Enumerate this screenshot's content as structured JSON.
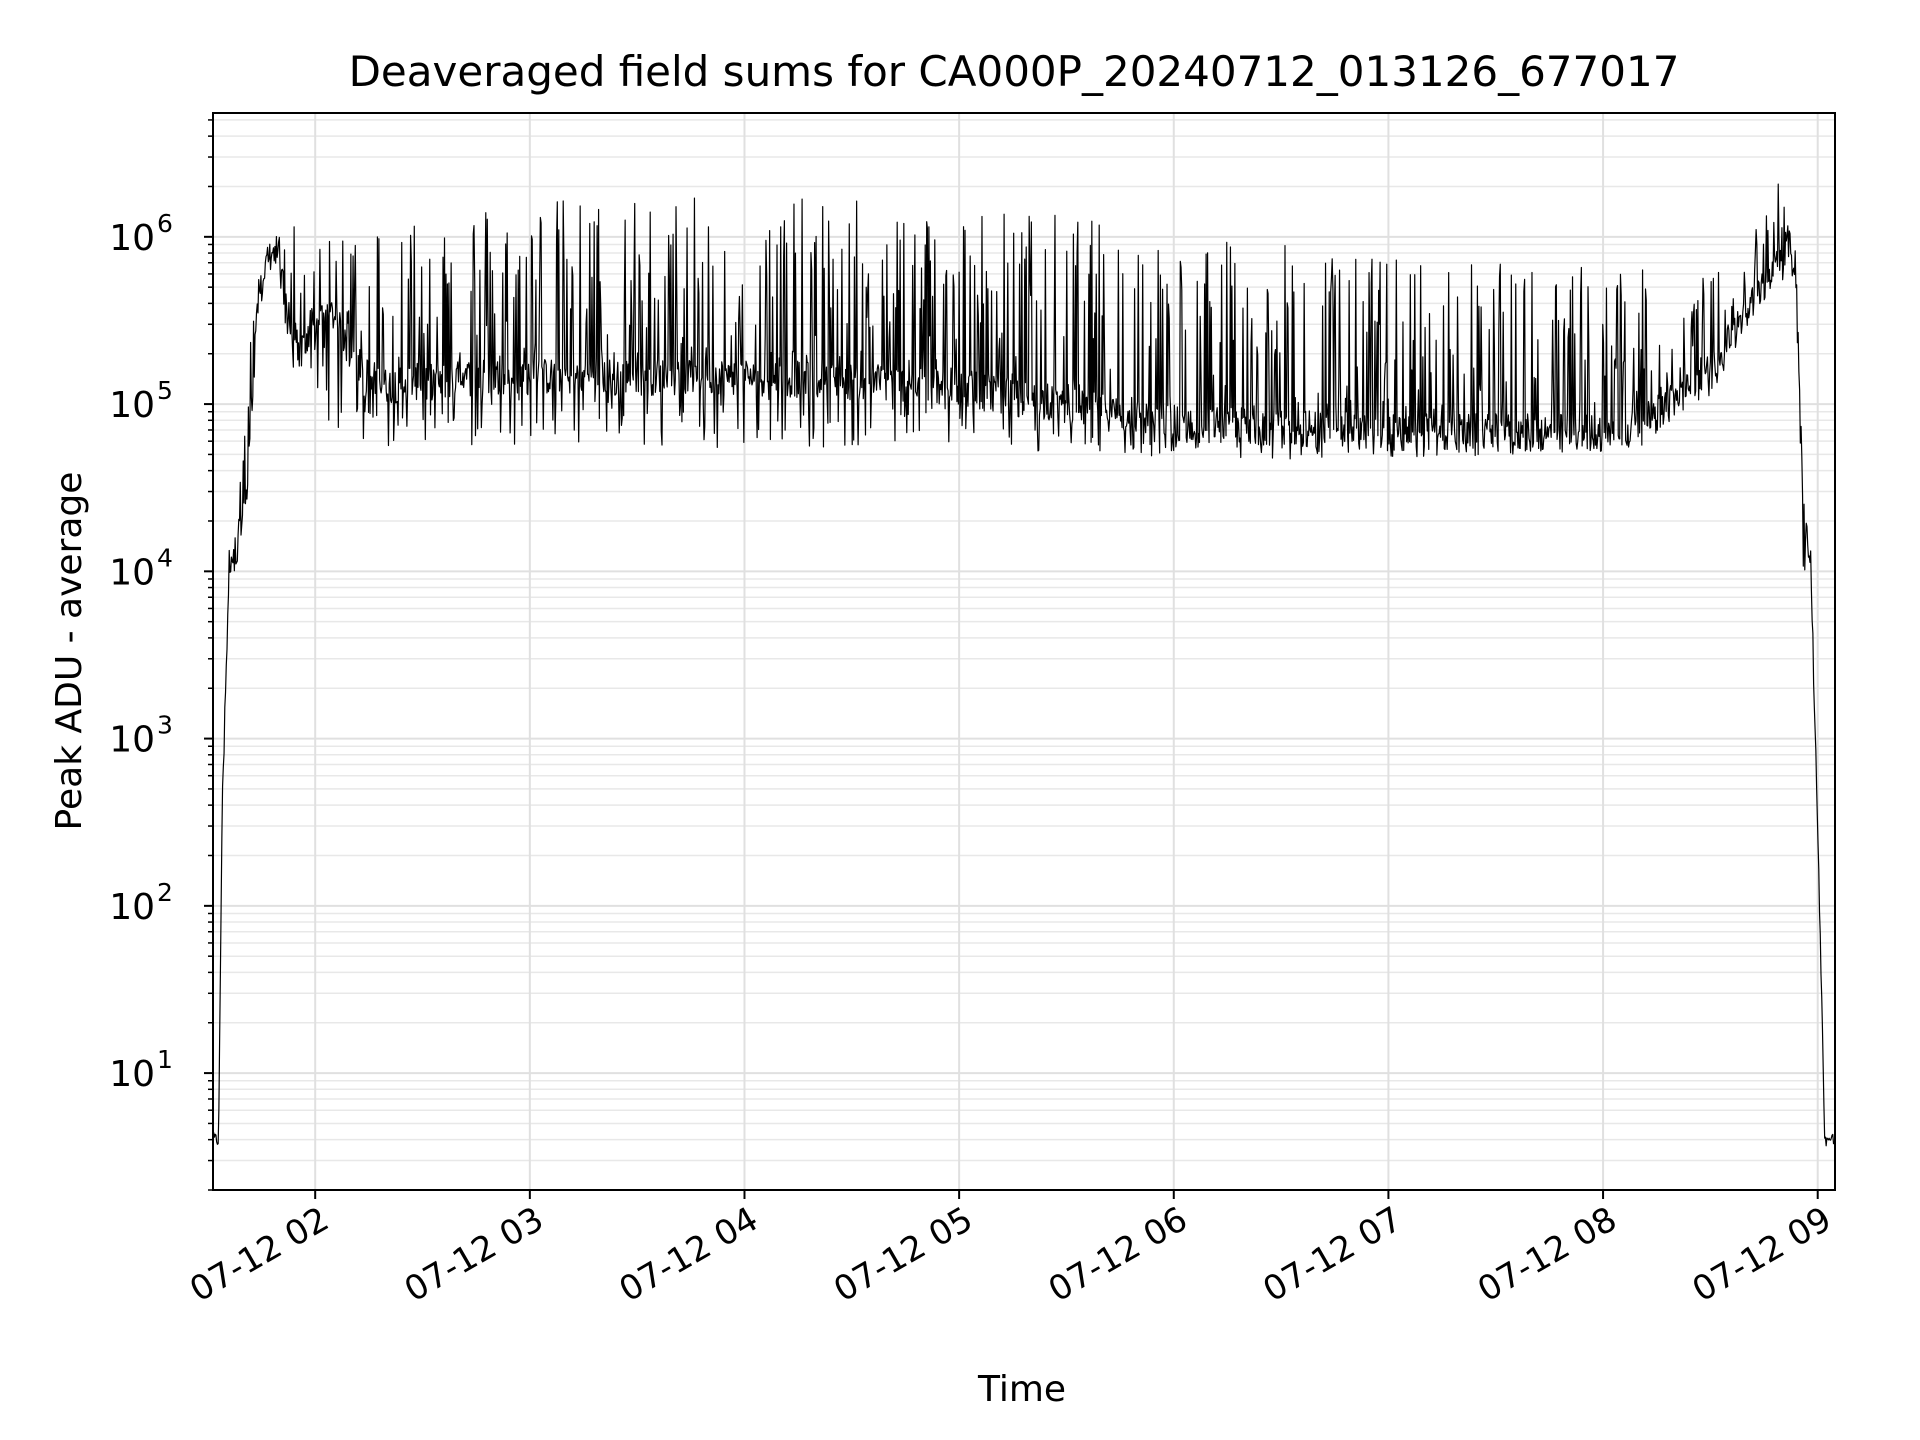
{
  "chart_data": {
    "type": "line",
    "title": "Deaveraged field sums for CA000P_20240712_013126_677017",
    "xlabel": "Time",
    "ylabel": "Peak ADU - average",
    "yscale": "log",
    "xlim": [
      "2024-07-12 01:31:26",
      "2024-07-12 09:04:50"
    ],
    "ylim": [
      2,
      5500000
    ],
    "grid": "major and minor, light gray",
    "line_color": "#000000",
    "x_tick_labels": [
      "07-12 02",
      "07-12 03",
      "07-12 04",
      "07-12 05",
      "07-12 06",
      "07-12 07",
      "07-12 08",
      "07-12 09"
    ],
    "x_tick_times": [
      "2024-07-12 02:00",
      "2024-07-12 03:00",
      "2024-07-12 04:00",
      "2024-07-12 05:00",
      "2024-07-12 06:00",
      "2024-07-12 07:00",
      "2024-07-12 08:00",
      "2024-07-12 09:00"
    ],
    "y_tick_values": [
      10,
      100,
      1000,
      10000,
      100000,
      1000000
    ],
    "y_tick_bases": [
      "10",
      "10",
      "10",
      "10",
      "10",
      "10"
    ],
    "y_tick_exponents": [
      "1",
      "2",
      "3",
      "4",
      "5",
      "6"
    ],
    "series": [
      {
        "x": [
          "2024-07-12 01:31:26",
          "2024-07-12 01:33:00",
          "2024-07-12 01:34:00",
          "2024-07-12 01:36:00",
          "2024-07-12 01:38:00",
          "2024-07-12 01:41:00",
          "2024-07-12 01:44:00",
          "2024-07-12 01:47:00",
          "2024-07-12 01:50:00",
          "2024-07-12 01:53:00",
          "2024-07-12 01:56:00",
          "2024-07-12 01:58:00",
          "2024-07-12 02:00:00",
          "2024-07-12 02:05:00",
          "2024-07-12 02:10:00",
          "2024-07-12 02:15:00",
          "2024-07-12 02:20:00",
          "2024-07-12 02:25:00",
          "2024-07-12 02:35:00",
          "2024-07-12 02:45:00",
          "2024-07-12 03:00:00",
          "2024-07-12 03:30:00",
          "2024-07-12 04:00:00",
          "2024-07-12 04:30:00",
          "2024-07-12 05:00:00",
          "2024-07-12 05:30:00",
          "2024-07-12 06:00:00",
          "2024-07-12 06:30:00",
          "2024-07-12 07:00:00",
          "2024-07-12 07:30:00",
          "2024-07-12 08:00:00",
          "2024-07-12 08:10:00",
          "2024-07-12 08:20:00",
          "2024-07-12 08:30:00",
          "2024-07-12 08:40:00",
          "2024-07-12 08:48:00",
          "2024-07-12 08:52:00",
          "2024-07-12 08:54:00",
          "2024-07-12 08:56:00",
          "2024-07-12 08:58:00",
          "2024-07-12 09:00:00",
          "2024-07-12 09:02:00",
          "2024-07-12 09:04:50"
        ],
        "y": [
          4,
          4,
          400,
          12000,
          15000,
          30000,
          400000,
          800000,
          750000,
          300000,
          200000,
          250000,
          300000,
          350000,
          200000,
          150000,
          130000,
          140000,
          140000,
          150000,
          150000,
          150000,
          150000,
          140000,
          130000,
          100000,
          80000,
          75000,
          70000,
          70000,
          70000,
          75000,
          110000,
          150000,
          350000,
          700000,
          1000000,
          600000,
          20000,
          12000,
          300,
          4,
          4
        ],
        "spike_max": [
          4,
          4,
          400,
          30000,
          30000,
          160000,
          700000,
          900000,
          1100000,
          2000000,
          700000,
          600000,
          800000,
          1000000,
          1400000,
          1400000,
          1500000,
          1600000,
          1700000,
          1700000,
          1750000,
          1750000,
          1700000,
          1700000,
          1600000,
          1400000,
          1000000,
          900000,
          800000,
          700000,
          700000,
          650000,
          550000,
          600000,
          800000,
          2800000,
          1200000,
          900000,
          30000,
          15000,
          300,
          4,
          4
        ],
        "spike_min": [
          4,
          4,
          400,
          10000,
          10000,
          20000,
          350000,
          700000,
          400000,
          160000,
          70000,
          90000,
          120000,
          70000,
          60000,
          55000,
          55000,
          55000,
          55000,
          55000,
          55000,
          55000,
          55000,
          55000,
          55000,
          50000,
          45000,
          45000,
          48000,
          48000,
          50000,
          55000,
          80000,
          120000,
          300000,
          600000,
          500000,
          400000,
          10000,
          9000,
          300,
          4,
          4
        ]
      }
    ]
  }
}
